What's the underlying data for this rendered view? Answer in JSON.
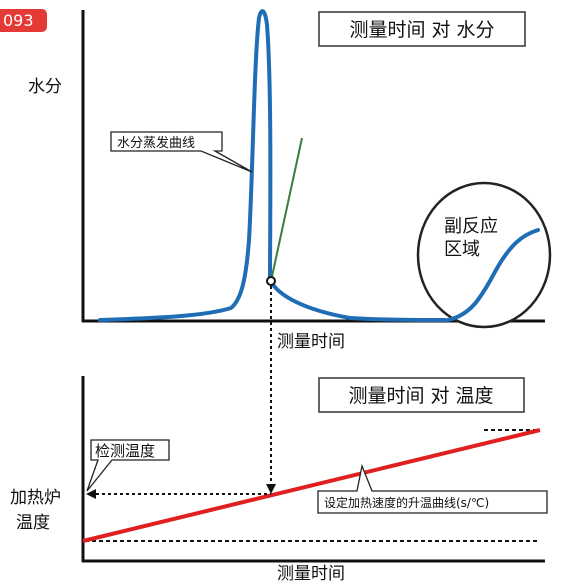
{
  "badge": {
    "text": "093",
    "color": "#e53935"
  },
  "top_chart": {
    "title": "测量时间 对 水分",
    "y_label": "水分",
    "x_label": "测量时间",
    "callout_evaporation": "水分蒸发曲线",
    "side_reaction_label_line1": "副反应",
    "side_reaction_label_line2": "区域"
  },
  "bottom_chart": {
    "title": "测量时间 对 温度",
    "y_label_line1": "加热炉",
    "y_label_line2": "温度",
    "x_label": "测量时间",
    "callout_detect": "检测温度",
    "callout_ramp": "设定加热速度的升温曲线(s/℃)"
  },
  "colors": {
    "moisture_curve": "#1f6db5",
    "tangent_line": "#3a7d3a",
    "temperature_line": "#e02020",
    "axes": "#111111"
  }
}
